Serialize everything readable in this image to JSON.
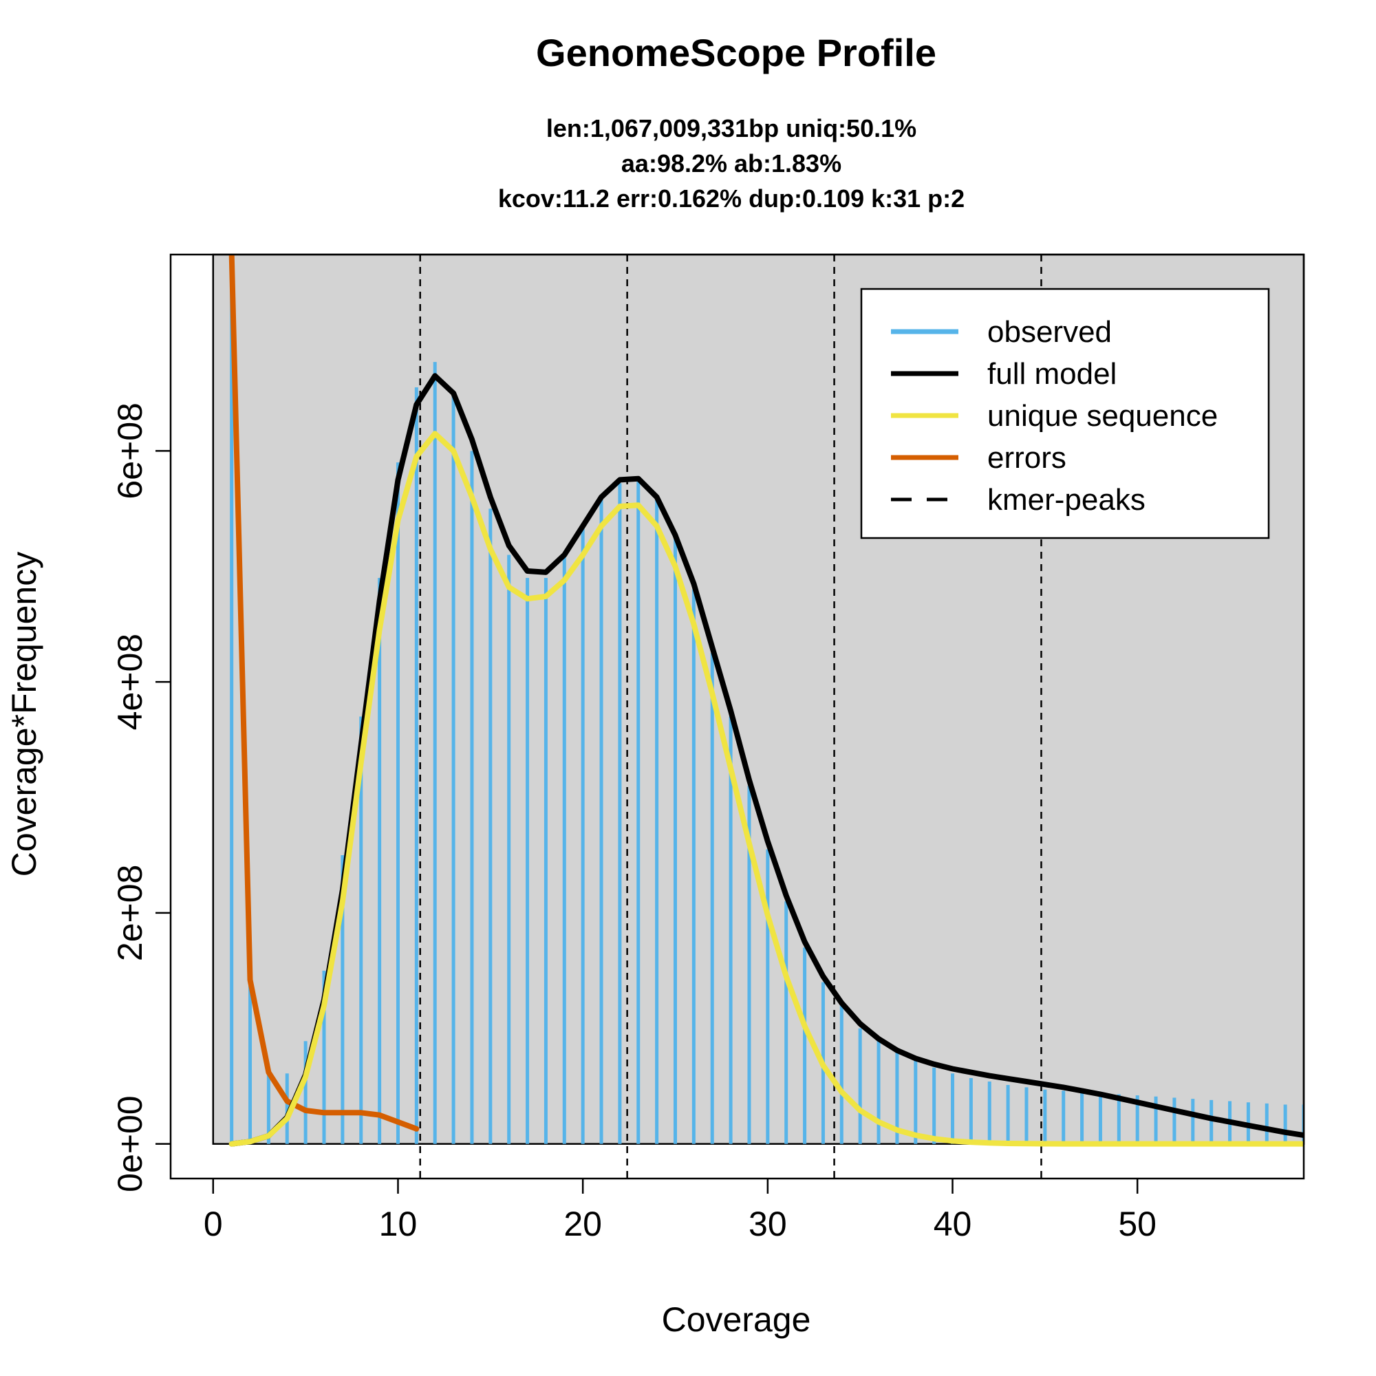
{
  "chart_data": {
    "type": "line",
    "title": "GenomeScope Profile",
    "subtitle_lines": [
      "len:1,067,009,331bp uniq:50.1%",
      "aa:98.2% ab:1.83%",
      "kcov:11.2 err:0.162%  dup:0.109  k:31 p:2"
    ],
    "xlabel": "Coverage",
    "ylabel": "Coverage*Frequency",
    "xlim": [
      -2.3,
      59
    ],
    "ylim": [
      -30000000,
      770000000
    ],
    "x_ticks": [
      0,
      10,
      20,
      30,
      40,
      50
    ],
    "x_tick_labels": [
      "0",
      "10",
      "20",
      "30",
      "40",
      "50"
    ],
    "y_ticks": [
      0,
      200000000,
      400000000,
      600000000
    ],
    "y_tick_labels": [
      "0e+00",
      "2e+08",
      "4e+08",
      "6e+08"
    ],
    "legend": {
      "position": "top-right",
      "entries": [
        {
          "label": "observed",
          "color": "#56B4E9",
          "style": "solid"
        },
        {
          "label": "full model",
          "color": "#000000",
          "style": "solid"
        },
        {
          "label": "unique sequence",
          "color": "#F0E442",
          "style": "solid"
        },
        {
          "label": "errors",
          "color": "#D55E00",
          "style": "solid"
        },
        {
          "label": "kmer-peaks",
          "color": "#000000",
          "style": "dashed"
        }
      ]
    },
    "background_color": "#D3D3D3",
    "kmer_peaks": [
      11.2,
      22.4,
      33.6,
      44.8
    ],
    "observed": {
      "color": "#56B4E9",
      "x": [
        1,
        2,
        3,
        4,
        5,
        6,
        7,
        8,
        9,
        10,
        11,
        12,
        13,
        14,
        15,
        16,
        17,
        18,
        19,
        20,
        21,
        22,
        23,
        24,
        25,
        26,
        27,
        28,
        29,
        30,
        31,
        32,
        33,
        34,
        35,
        36,
        37,
        38,
        39,
        40,
        41,
        42,
        43,
        44,
        45,
        46,
        47,
        48,
        49,
        50,
        51,
        52,
        53,
        54,
        55,
        56,
        57,
        58,
        59
      ],
      "y": [
        770000000,
        140000000,
        60000000,
        61000000,
        89000000,
        150000000,
        250000000,
        370000000,
        490000000,
        590000000,
        655000000,
        677000000,
        650000000,
        600000000,
        550000000,
        510000000,
        490000000,
        490000000,
        508000000,
        535000000,
        560000000,
        572000000,
        575000000,
        558000000,
        525000000,
        480000000,
        425000000,
        370000000,
        310000000,
        255000000,
        210000000,
        170000000,
        140000000,
        120000000,
        100000000,
        90000000,
        80000000,
        72000000,
        66000000,
        61000000,
        57000000,
        54000000,
        51000000,
        49000000,
        47000000,
        46000000,
        45000000,
        44000000,
        43000000,
        42000000,
        41000000,
        40000000,
        39000000,
        38000000,
        37000000,
        36000000,
        35000000,
        34000000,
        34000000
      ]
    },
    "full_model": {
      "color": "#000000",
      "x": [
        1,
        2,
        3,
        4,
        5,
        6,
        7,
        8,
        9,
        10,
        11,
        12,
        13,
        14,
        15,
        16,
        17,
        18,
        19,
        20,
        21,
        22,
        23,
        24,
        25,
        26,
        27,
        28,
        29,
        30,
        31,
        32,
        33,
        34,
        35,
        36,
        37,
        38,
        39,
        40,
        41,
        42,
        43,
        44,
        45,
        46,
        47,
        48,
        49,
        50,
        51,
        52,
        53,
        54,
        55,
        56,
        57,
        58,
        59
      ],
      "y": [
        0,
        2000000,
        7000000,
        23000000,
        60000000,
        125000000,
        220000000,
        345000000,
        470000000,
        575000000,
        640000000,
        665000000,
        650000000,
        610000000,
        560000000,
        518000000,
        496000000,
        495000000,
        510000000,
        535000000,
        560000000,
        575000000,
        576000000,
        560000000,
        527000000,
        485000000,
        430000000,
        375000000,
        315000000,
        262000000,
        215000000,
        175000000,
        145000000,
        122000000,
        104000000,
        91000000,
        81000000,
        74000000,
        69000000,
        65000000,
        62000000,
        59000000,
        56500000,
        54000000,
        51500000,
        49000000,
        46000000,
        43000000,
        39500000,
        36000000,
        32500000,
        29000000,
        25500000,
        22000000,
        19000000,
        16000000,
        13000000,
        10000000,
        7500000
      ]
    },
    "unique_sequence": {
      "color": "#F0E442",
      "x": [
        1,
        2,
        3,
        4,
        5,
        6,
        7,
        8,
        9,
        10,
        11,
        12,
        13,
        14,
        15,
        16,
        17,
        18,
        19,
        20,
        21,
        22,
        23,
        24,
        25,
        26,
        27,
        28,
        29,
        30,
        31,
        32,
        33,
        34,
        35,
        36,
        37,
        38,
        39,
        40,
        41,
        42,
        43,
        44,
        45,
        46,
        47,
        48,
        49,
        50,
        51,
        52,
        53,
        54,
        55,
        56,
        57,
        58,
        59
      ],
      "y": [
        0,
        2000000,
        7000000,
        22000000,
        58000000,
        120000000,
        210000000,
        330000000,
        445000000,
        540000000,
        595000000,
        615000000,
        600000000,
        560000000,
        515000000,
        482000000,
        472000000,
        474000000,
        488000000,
        510000000,
        535000000,
        552000000,
        553000000,
        535000000,
        500000000,
        450000000,
        390000000,
        325000000,
        260000000,
        198000000,
        145000000,
        102000000,
        68000000,
        45000000,
        29000000,
        19000000,
        12000000,
        7500000,
        4500000,
        2500000,
        1500000,
        800000,
        400000,
        200000,
        100000,
        50000,
        0,
        0,
        0,
        0,
        0,
        0,
        0,
        0,
        0,
        0,
        0,
        0,
        0
      ]
    },
    "errors": {
      "color": "#D55E00",
      "x": [
        1,
        2,
        3,
        4,
        5,
        6,
        7,
        8,
        9,
        10,
        11
      ],
      "y": [
        770000000,
        142000000,
        62000000,
        37000000,
        29000000,
        27000000,
        27000000,
        27000000,
        25000000,
        19000000,
        13000000
      ]
    }
  }
}
